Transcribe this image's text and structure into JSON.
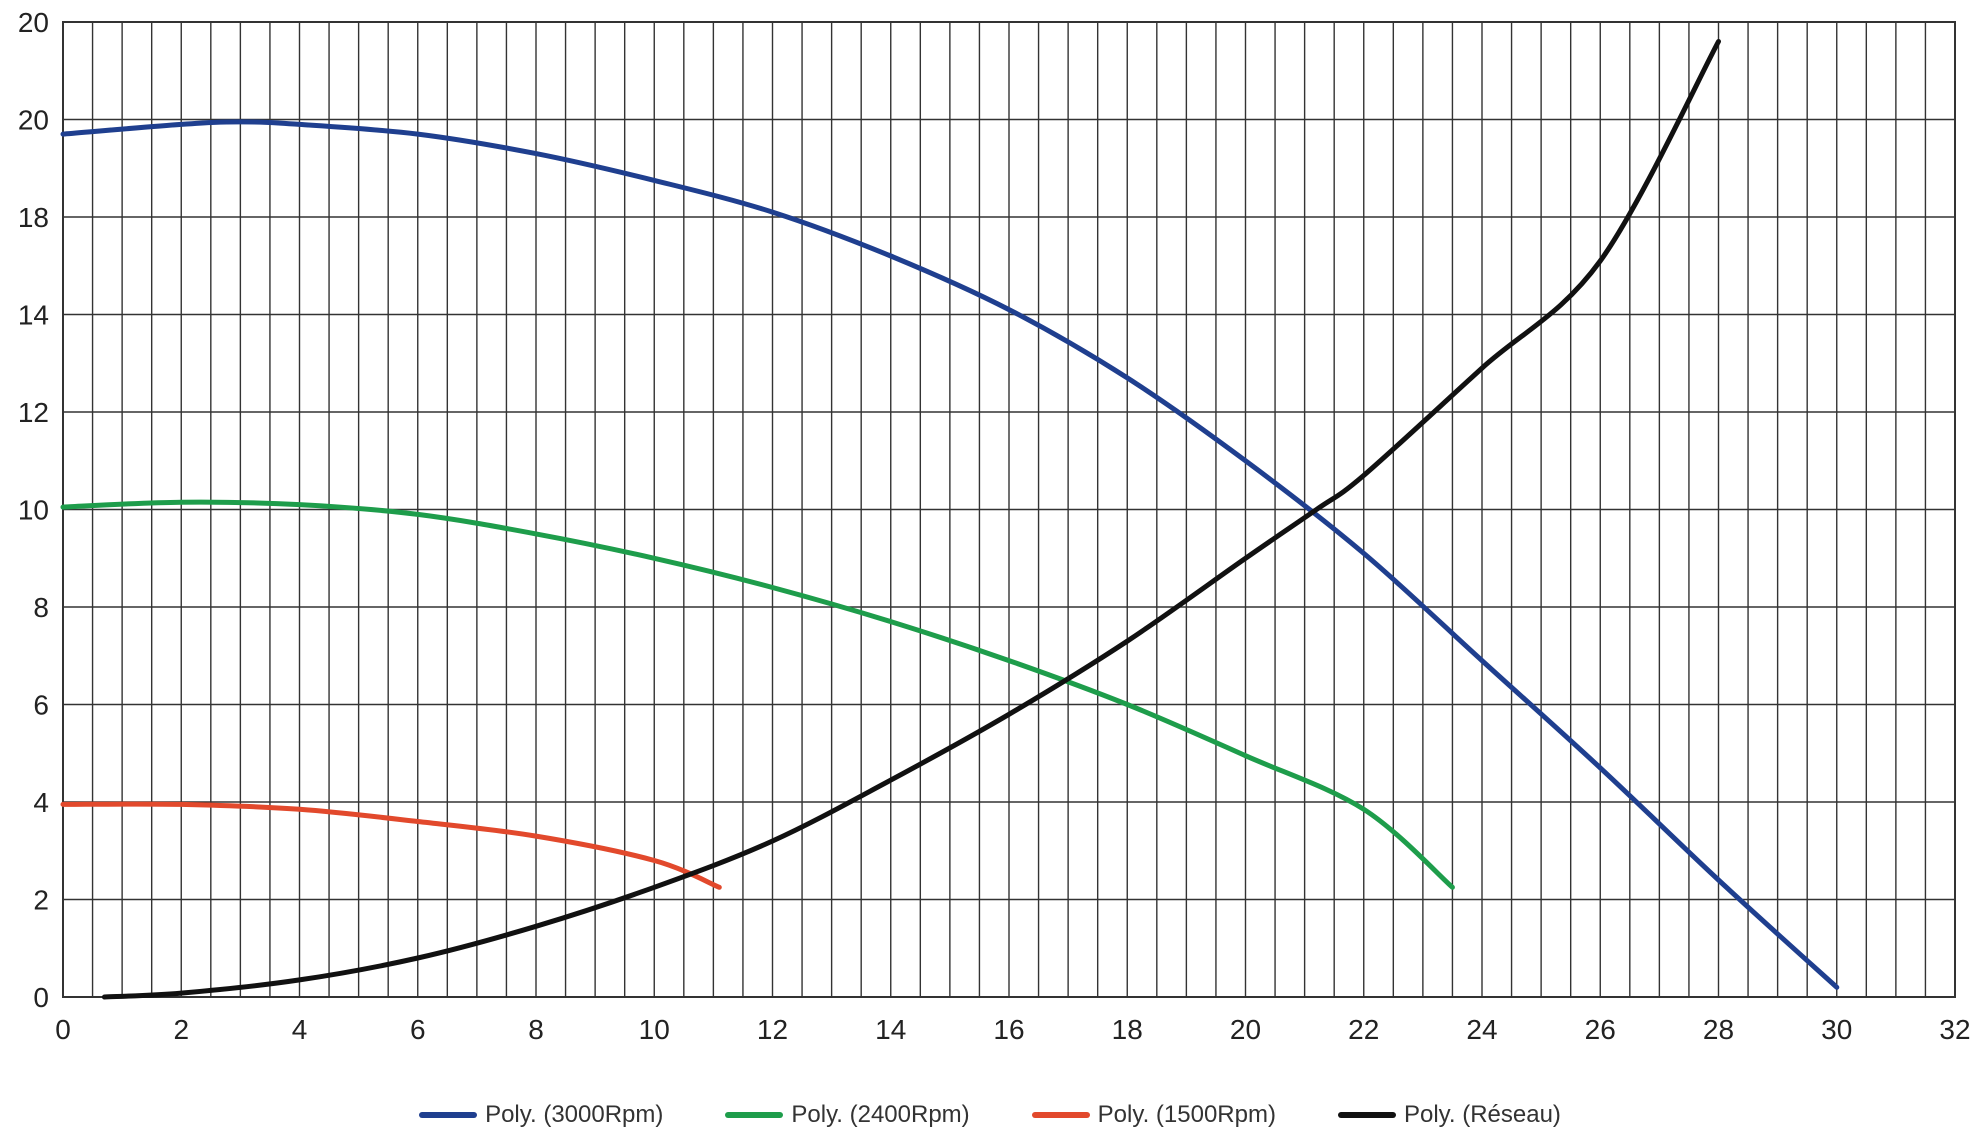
{
  "chart_data": {
    "type": "line",
    "xlim": [
      0,
      32
    ],
    "ylim": [
      0,
      20
    ],
    "x_ticks": [
      "0",
      "2",
      "4",
      "6",
      "8",
      "10",
      "12",
      "14",
      "16",
      "18",
      "20",
      "22",
      "24",
      "26",
      "28",
      "30",
      "32"
    ],
    "y_ticks": [
      "0",
      "2",
      "4",
      "6",
      "8",
      "10",
      "12",
      "14",
      "18",
      "20",
      "20"
    ],
    "minor_x_step": 0.5,
    "grid": true,
    "legend_position": "bottom",
    "series": [
      {
        "name": "Poly. (3000Rpm)",
        "color": "#1f3f8f",
        "points": [
          [
            0,
            17.7
          ],
          [
            2,
            17.9
          ],
          [
            3,
            17.95
          ],
          [
            4,
            17.9
          ],
          [
            6,
            17.7
          ],
          [
            8,
            17.3
          ],
          [
            10,
            16.75
          ],
          [
            12,
            16.1
          ],
          [
            14,
            15.2
          ],
          [
            16,
            14.1
          ],
          [
            18,
            12.7
          ],
          [
            20,
            11.0
          ],
          [
            22,
            9.1
          ],
          [
            24,
            6.9
          ],
          [
            26,
            4.7
          ],
          [
            28,
            2.4
          ],
          [
            30,
            0.2
          ]
        ]
      },
      {
        "name": "Poly. (2400Rpm)",
        "color": "#1e9d4b",
        "points": [
          [
            0,
            10.05
          ],
          [
            2,
            10.15
          ],
          [
            4,
            10.1
          ],
          [
            6,
            9.9
          ],
          [
            8,
            9.5
          ],
          [
            10,
            9.0
          ],
          [
            12,
            8.4
          ],
          [
            14,
            7.7
          ],
          [
            16,
            6.9
          ],
          [
            18,
            6.0
          ],
          [
            20,
            4.95
          ],
          [
            22,
            3.85
          ],
          [
            23.5,
            2.25
          ]
        ]
      },
      {
        "name": "Poly. (1500Rpm)",
        "color": "#e2492c",
        "points": [
          [
            0,
            3.95
          ],
          [
            2,
            3.95
          ],
          [
            4,
            3.85
          ],
          [
            6,
            3.6
          ],
          [
            8,
            3.3
          ],
          [
            10,
            2.8
          ],
          [
            11.1,
            2.25
          ]
        ]
      },
      {
        "name": "Poly. (Réseau)",
        "color": "#111111",
        "points": [
          [
            0.7,
            0.0
          ],
          [
            2,
            0.08
          ],
          [
            4,
            0.35
          ],
          [
            6,
            0.8
          ],
          [
            8,
            1.45
          ],
          [
            10,
            2.25
          ],
          [
            12,
            3.2
          ],
          [
            14,
            4.45
          ],
          [
            16,
            5.8
          ],
          [
            18,
            7.3
          ],
          [
            20,
            9.0
          ],
          [
            21.2,
            10.0
          ],
          [
            22,
            10.7
          ],
          [
            24,
            12.9
          ],
          [
            26,
            15.1
          ],
          [
            28,
            19.6
          ]
        ]
      }
    ]
  }
}
